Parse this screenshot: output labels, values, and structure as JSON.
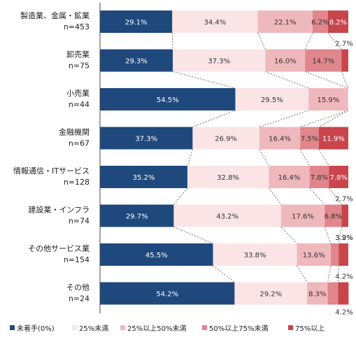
{
  "chart_data": {
    "type": "bar",
    "orientation": "horizontal",
    "stacked": "percent",
    "xlim": [
      0,
      100
    ],
    "grid": false,
    "legend_position": "bottom",
    "categories": [
      {
        "name": "製造業、金属・鉱業",
        "n": "n=453"
      },
      {
        "name": "卸売業",
        "n": "n=75"
      },
      {
        "name": "小売業",
        "n": "n=44"
      },
      {
        "name": "金融機関",
        "n": "n=67"
      },
      {
        "name": "情報通信・ITサービス",
        "n": "n=128"
      },
      {
        "name": "建設業・インフラ",
        "n": "n=74"
      },
      {
        "name": "その他サービス業",
        "n": "n=154"
      },
      {
        "name": "その他",
        "n": "n=24"
      }
    ],
    "series": [
      {
        "name": "未着手(0%)",
        "color": "#1f497d",
        "text_color": "#ffffff",
        "values": [
          29.1,
          29.3,
          54.5,
          37.3,
          35.2,
          29.7,
          45.5,
          54.2
        ]
      },
      {
        "name": "25%未満",
        "color": "#fbe4e6",
        "text_color": "#333333",
        "values": [
          34.4,
          37.3,
          29.5,
          26.9,
          32.8,
          43.2,
          33.8,
          29.2
        ]
      },
      {
        "name": "25%以上50%未満",
        "color": "#efb8bc",
        "text_color": "#333333",
        "values": [
          22.1,
          16.0,
          15.9,
          16.4,
          16.4,
          17.6,
          13.6,
          8.3
        ]
      },
      {
        "name": "50%以上75%未満",
        "color": "#e0868c",
        "text_color": "#333333",
        "values": [
          6.2,
          14.7,
          0,
          7.5,
          7.8,
          6.8,
          3.2,
          4.2
        ]
      },
      {
        "name": "75%以上",
        "color": "#c8454b",
        "text_color": "#ffffff",
        "values": [
          8.2,
          2.7,
          0,
          11.9,
          7.8,
          2.7,
          3.9,
          4.2
        ]
      }
    ],
    "data_labels": [
      [
        "29.1%",
        "34.4%",
        "22.1%",
        "6.2%",
        "8.2%"
      ],
      [
        "29.3%",
        "37.3%",
        "16.0%",
        "14.7%",
        "2.7%"
      ],
      [
        "54.5%",
        "29.5%",
        "15.9%",
        "",
        ""
      ],
      [
        "37.3%",
        "26.9%",
        "16.4%",
        "7.5%",
        "11.9%"
      ],
      [
        "35.2%",
        "32.8%",
        "16.4%",
        "7.8%",
        "7.8%"
      ],
      [
        "29.7%",
        "43.2%",
        "17.6%",
        "6.8%",
        "2.7%"
      ],
      [
        "45.5%",
        "33.8%",
        "13.6%",
        "3.2%",
        "3.9%"
      ],
      [
        "54.2%",
        "29.2%",
        "8.3%",
        "4.2%",
        "4.2%"
      ]
    ]
  }
}
